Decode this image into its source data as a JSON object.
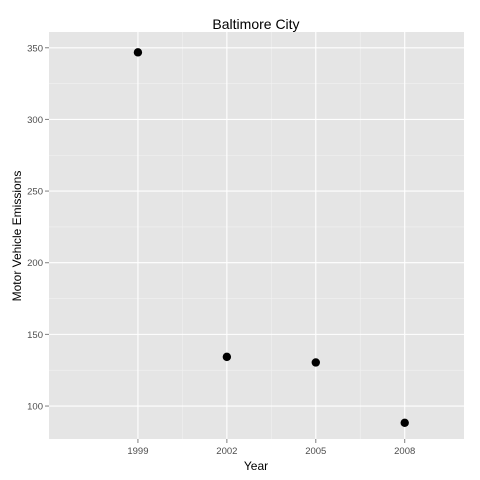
{
  "chart_data": {
    "type": "scatter",
    "title": "Baltimore City",
    "xlabel": "Year",
    "ylabel": "Motor Vehicle Emissions",
    "x": [
      1999,
      2002,
      2005,
      2008
    ],
    "y": [
      346.8,
      134.3,
      130.4,
      88.3
    ],
    "xticks": [
      "1999",
      "2002",
      "2005",
      "2008"
    ],
    "yticks": [
      100,
      150,
      200,
      250,
      300,
      350
    ],
    "xlim": [
      1996,
      2010
    ],
    "ylim": [
      77,
      361
    ],
    "grid": true,
    "legend": "none",
    "colors": {
      "panel_background": "#e5e5e5",
      "grid_major": "#ffffff",
      "grid_minor": "#f2f2f2",
      "point": "#000000"
    }
  }
}
